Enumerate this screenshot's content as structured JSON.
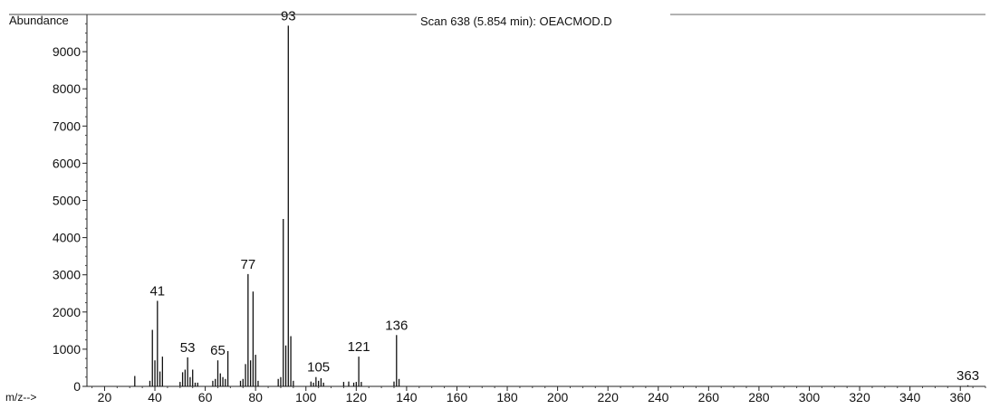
{
  "header": {
    "ylabel": "Abundance",
    "title": "Scan 638 (5.854 min): OEACMOD.D",
    "xlabel": "m/z-->"
  },
  "chart_data": {
    "type": "bar",
    "title": "Scan 638 (5.854 min): OEACMOD.D",
    "xlabel": "m/z-->",
    "ylabel": "Abundance",
    "xlim": [
      13,
      370
    ],
    "ylim": [
      0,
      10000
    ],
    "x_ticks": [
      20,
      40,
      60,
      80,
      100,
      120,
      140,
      160,
      180,
      200,
      220,
      240,
      260,
      280,
      300,
      320,
      340,
      360
    ],
    "y_ticks": [
      0,
      1000,
      2000,
      3000,
      4000,
      5000,
      6000,
      7000,
      8000,
      9000
    ],
    "grid": false,
    "series": [
      {
        "x": [
          32,
          38,
          39,
          40,
          41,
          42,
          43,
          50,
          51,
          52,
          53,
          54,
          55,
          56,
          57,
          63,
          64,
          65,
          66,
          67,
          68,
          69,
          74,
          75,
          76,
          77,
          78,
          79,
          80,
          81,
          89,
          90,
          91,
          92,
          93,
          94,
          95,
          102,
          103,
          104,
          105,
          106,
          107,
          115,
          117,
          119,
          120,
          121,
          122,
          135,
          136,
          137,
          363
        ],
        "y": [
          280,
          150,
          1520,
          700,
          2300,
          400,
          800,
          120,
          380,
          450,
          780,
          250,
          450,
          100,
          100,
          150,
          200,
          700,
          350,
          250,
          200,
          950,
          150,
          200,
          600,
          3020,
          700,
          2550,
          850,
          150,
          200,
          250,
          4500,
          1100,
          9700,
          1350,
          150,
          130,
          100,
          250,
          150,
          220,
          100,
          120,
          130,
          100,
          120,
          800,
          120,
          130,
          1380,
          200,
          30
        ]
      }
    ],
    "peak_labels": [
      {
        "x": 41,
        "y": 2300,
        "text": "41"
      },
      {
        "x": 53,
        "y": 780,
        "text": "53"
      },
      {
        "x": 65,
        "y": 700,
        "text": "65"
      },
      {
        "x": 77,
        "y": 3020,
        "text": "77"
      },
      {
        "x": 93,
        "y": 9700,
        "text": "93"
      },
      {
        "x": 105,
        "y": 250,
        "text": "105"
      },
      {
        "x": 121,
        "y": 800,
        "text": "121"
      },
      {
        "x": 136,
        "y": 1380,
        "text": "136"
      },
      {
        "x": 363,
        "y": 30,
        "text": "363"
      }
    ]
  }
}
